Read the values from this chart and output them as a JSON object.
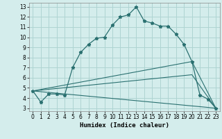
{
  "xlabel": "Humidex (Indice chaleur)",
  "background_color": "#d4edec",
  "grid_color": "#aed4d2",
  "line_color": "#2a7070",
  "xlim": [
    -0.5,
    23.5
  ],
  "ylim": [
    2.7,
    13.4
  ],
  "xticks": [
    0,
    1,
    2,
    3,
    4,
    5,
    6,
    7,
    8,
    9,
    10,
    11,
    12,
    13,
    14,
    15,
    16,
    17,
    18,
    19,
    20,
    21,
    22,
    23
  ],
  "yticks": [
    3,
    4,
    5,
    6,
    7,
    8,
    9,
    10,
    11,
    12,
    13
  ],
  "line1_x": [
    0,
    1,
    2,
    3,
    4,
    5,
    6,
    7,
    8,
    9,
    10,
    11,
    12,
    13,
    14,
    15,
    16,
    17,
    18,
    19,
    20,
    21,
    22,
    23
  ],
  "line1_y": [
    4.7,
    3.6,
    4.4,
    4.4,
    4.3,
    7.0,
    8.5,
    9.3,
    9.9,
    10.0,
    11.2,
    12.0,
    12.2,
    13.0,
    11.6,
    11.4,
    11.1,
    11.1,
    10.3,
    9.3,
    7.6,
    4.3,
    3.9,
    3.0
  ],
  "line2_x": [
    0,
    20,
    23
  ],
  "line2_y": [
    4.7,
    7.6,
    3.0
  ],
  "line3_x": [
    0,
    20,
    23
  ],
  "line3_y": [
    4.7,
    6.3,
    3.0
  ],
  "line4_x": [
    0,
    23
  ],
  "line4_y": [
    4.7,
    3.0
  ]
}
